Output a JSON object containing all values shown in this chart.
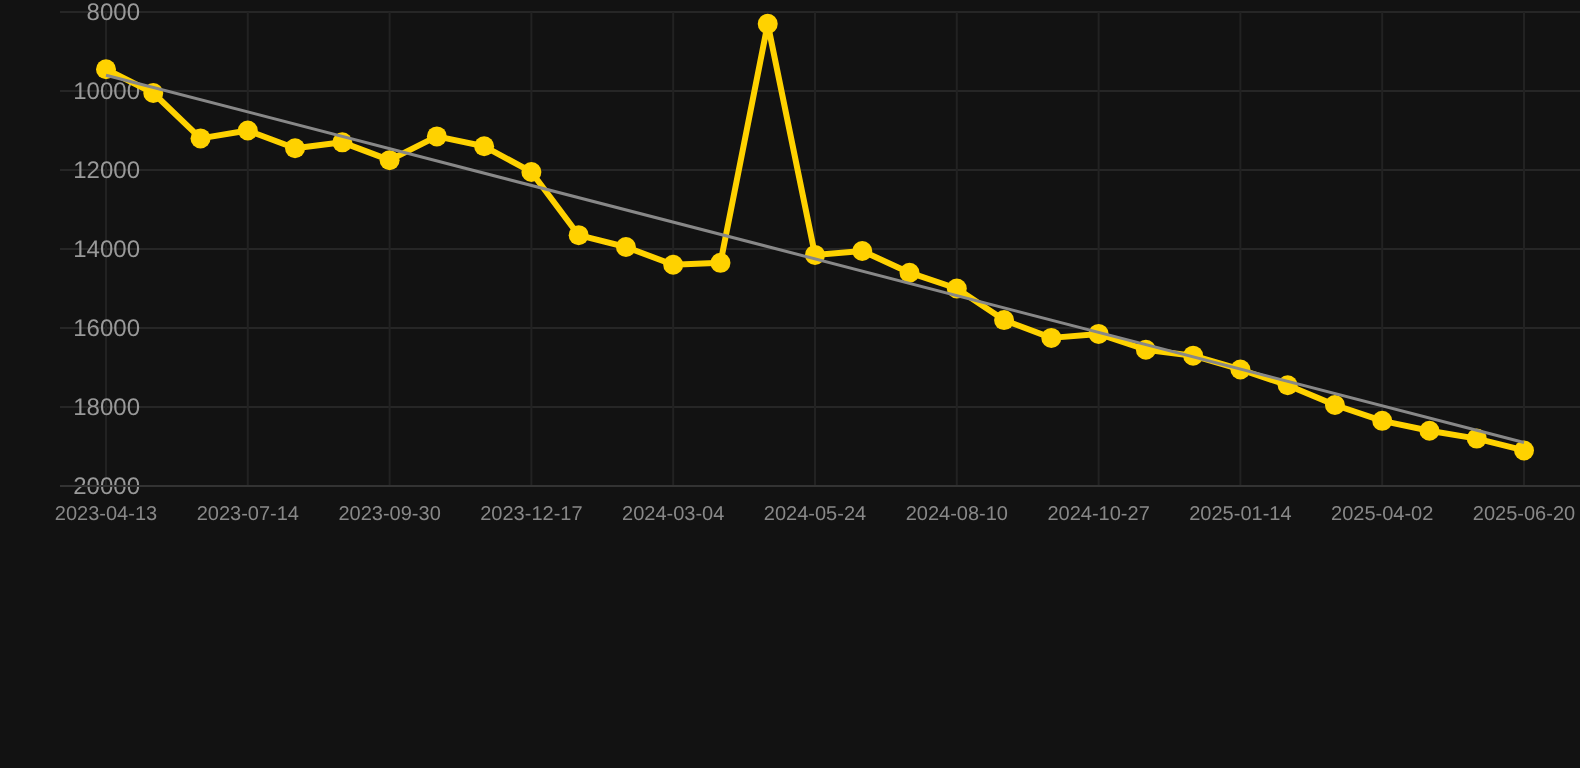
{
  "chart_data": {
    "type": "line",
    "categories": [
      "2023-04-13",
      null,
      null,
      "2023-07-14",
      null,
      null,
      "2023-09-30",
      null,
      null,
      "2023-12-17",
      null,
      null,
      "2024-03-04",
      null,
      null,
      "2024-05-24",
      null,
      null,
      "2024-08-10",
      null,
      null,
      "2024-10-27",
      null,
      null,
      "2025-01-14",
      null,
      null,
      "2025-04-02",
      null,
      null,
      "2025-06-20"
    ],
    "series": [
      {
        "color": "#ffd200",
        "marker": "circle",
        "values": [
          9450,
          10050,
          11200,
          11000,
          11450,
          11300,
          11750,
          11150,
          11400,
          12050,
          13650,
          13950,
          14400,
          14350,
          8300,
          14150,
          14050,
          14600,
          15000,
          15800,
          16250,
          16150,
          16550,
          16700,
          17050,
          17450,
          17950,
          18350,
          18600,
          18800,
          19100
        ]
      },
      {
        "type": "line",
        "color": "#888888",
        "marker": "none",
        "values": [
          9600,
          null,
          null,
          null,
          null,
          null,
          null,
          null,
          null,
          null,
          null,
          null,
          null,
          null,
          null,
          null,
          null,
          null,
          null,
          null,
          null,
          null,
          null,
          null,
          null,
          null,
          null,
          null,
          null,
          null,
          18900
        ]
      }
    ],
    "ylim": [
      20000,
      8000
    ],
    "yticks": [
      8000,
      10000,
      12000,
      14000,
      16000,
      18000,
      20000
    ],
    "grid": true
  }
}
